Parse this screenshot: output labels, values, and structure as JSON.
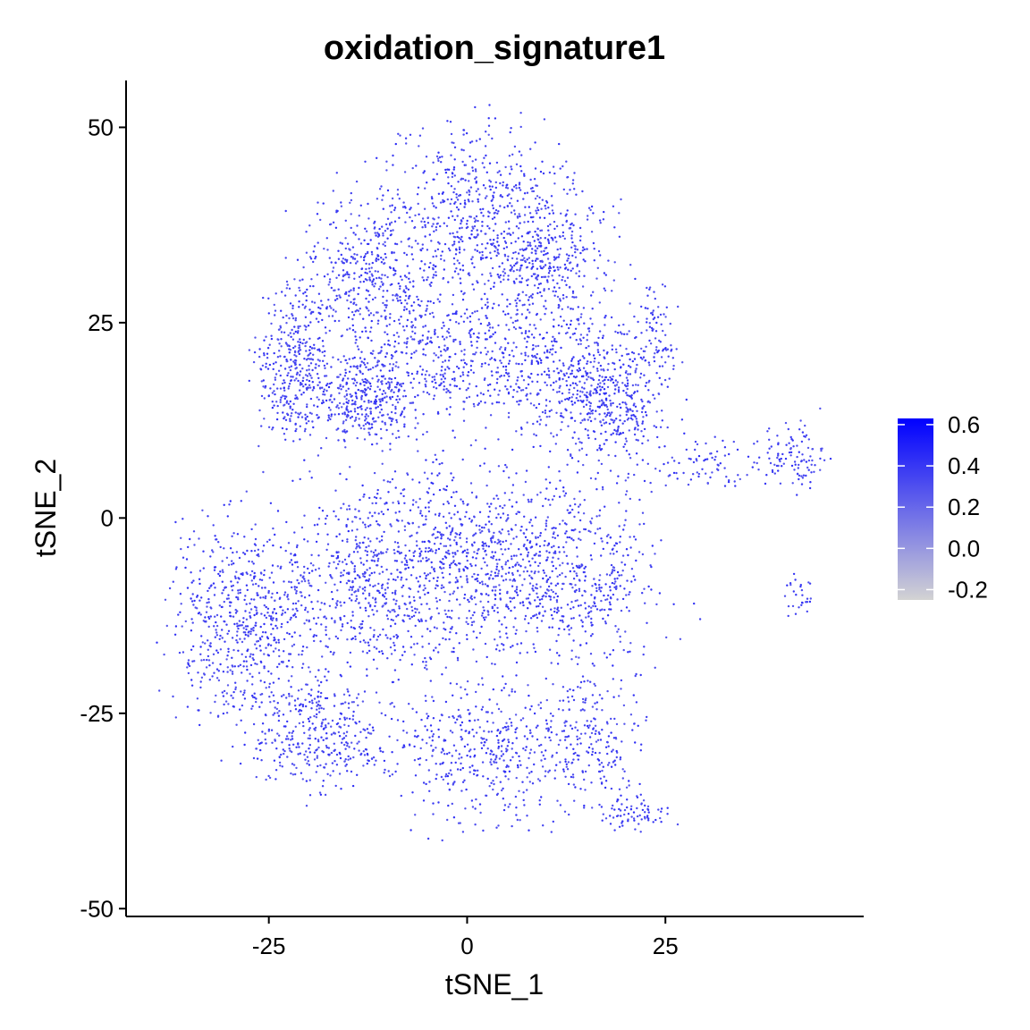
{
  "chart_data": {
    "type": "scatter",
    "title": "oxidation_signature1",
    "xlabel": "tSNE_1",
    "ylabel": "tSNE_2",
    "xlim": [
      -43,
      50
    ],
    "ylim": [
      -51,
      56
    ],
    "x_ticks": [
      -25,
      0,
      25
    ],
    "y_ticks": [
      -50,
      -25,
      0,
      25,
      50
    ],
    "grid": false,
    "color_scale": {
      "low_color": "#d3d3d3",
      "high_color": "#0000ff",
      "min": -0.25,
      "max": 0.63,
      "ticks": [
        0.6,
        0.4,
        0.2,
        0.0,
        -0.2
      ],
      "tick_labels": [
        "0.6",
        "0.4",
        "0.2",
        "0.0",
        "-0.2"
      ]
    },
    "legend_position": "right",
    "point_color_default": "#6a45e6",
    "point_count_approx": 7000,
    "cluster_regions": [
      {
        "cx": 1,
        "cy": 38,
        "rx": 10,
        "ry": 11,
        "weight": 0.08
      },
      {
        "cx": -12,
        "cy": 30,
        "rx": 8,
        "ry": 10,
        "weight": 0.07
      },
      {
        "cx": 10,
        "cy": 33,
        "rx": 7,
        "ry": 10,
        "weight": 0.06
      },
      {
        "cx": -22,
        "cy": 20,
        "rx": 4,
        "ry": 9,
        "weight": 0.05
      },
      {
        "cx": -13,
        "cy": 15,
        "rx": 6,
        "ry": 5,
        "weight": 0.05
      },
      {
        "cx": 0,
        "cy": 20,
        "rx": 12,
        "ry": 7,
        "weight": 0.06
      },
      {
        "cx": 14,
        "cy": 18,
        "rx": 8,
        "ry": 8,
        "weight": 0.05
      },
      {
        "cx": 19,
        "cy": 15,
        "rx": 6,
        "ry": 8,
        "weight": 0.04
      },
      {
        "cx": 24,
        "cy": 24,
        "rx": 2,
        "ry": 6,
        "weight": 0.01
      },
      {
        "cx": -28,
        "cy": -13,
        "rx": 8,
        "ry": 12,
        "weight": 0.09
      },
      {
        "cx": -13,
        "cy": -8,
        "rx": 9,
        "ry": 12,
        "weight": 0.08
      },
      {
        "cx": 0,
        "cy": -5,
        "rx": 10,
        "ry": 11,
        "weight": 0.09
      },
      {
        "cx": 13,
        "cy": -7,
        "rx": 10,
        "ry": 11,
        "weight": 0.08
      },
      {
        "cx": -18,
        "cy": -28,
        "rx": 9,
        "ry": 6,
        "weight": 0.05
      },
      {
        "cx": 3,
        "cy": -30,
        "rx": 10,
        "ry": 8,
        "weight": 0.06
      },
      {
        "cx": 16,
        "cy": -28,
        "rx": 6,
        "ry": 8,
        "weight": 0.03
      },
      {
        "cx": 21,
        "cy": -38,
        "rx": 4,
        "ry": 2,
        "weight": 0.01
      },
      {
        "cx": 31,
        "cy": 7,
        "rx": 6,
        "ry": 3,
        "weight": 0.01
      },
      {
        "cx": 41,
        "cy": 8,
        "rx": 4,
        "ry": 4,
        "weight": 0.015
      },
      {
        "cx": 42,
        "cy": -10,
        "rx": 2,
        "ry": 3,
        "weight": 0.004
      }
    ]
  }
}
